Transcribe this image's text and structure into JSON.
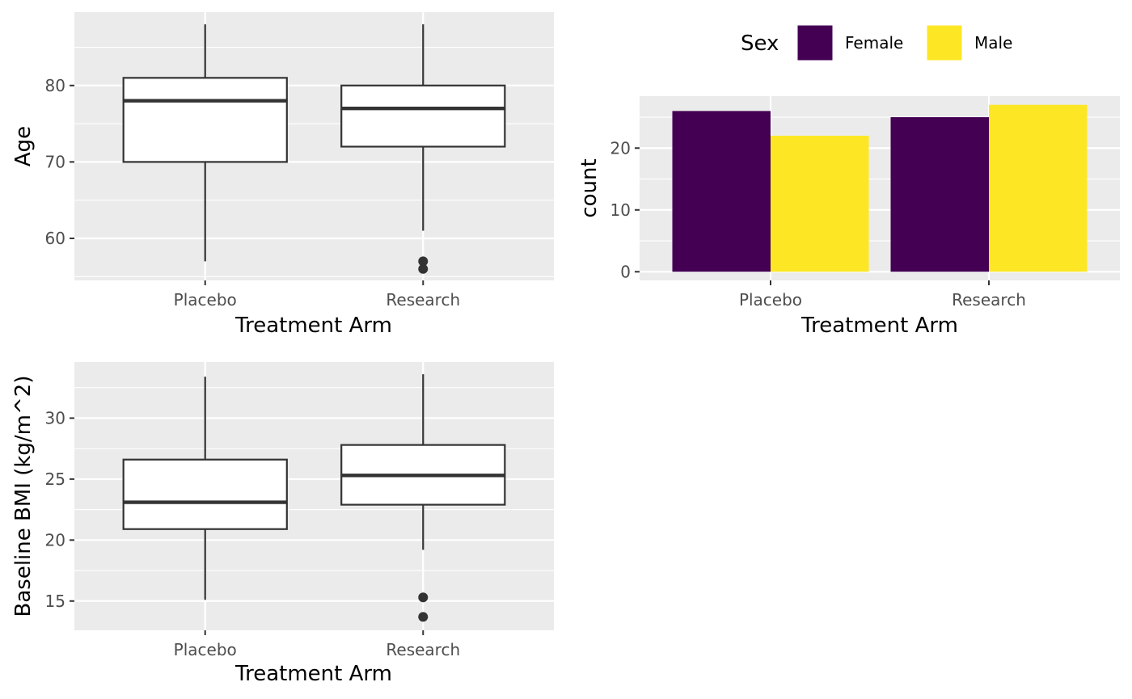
{
  "chart_data": [
    {
      "type": "boxplot",
      "xlabel": "Treatment Arm",
      "ylabel": "Age",
      "categories": [
        "Placebo",
        "Research"
      ],
      "y_ticks": [
        60,
        70,
        80
      ],
      "ylim": [
        54.5,
        89.6
      ],
      "boxes": [
        {
          "category": "Placebo",
          "min": 57,
          "q1": 70,
          "median": 78,
          "q3": 81,
          "max": 88,
          "outliers": []
        },
        {
          "category": "Research",
          "min": 61,
          "q1": 72,
          "median": 77,
          "q3": 80,
          "max": 88,
          "outliers": [
            57,
            56
          ]
        }
      ],
      "grid": true
    },
    {
      "type": "bar",
      "xlabel": "Treatment Arm",
      "ylabel": "count",
      "categories": [
        "Placebo",
        "Research"
      ],
      "y_ticks": [
        0,
        10,
        20
      ],
      "ylim": [
        -1.4,
        28.4
      ],
      "legend": {
        "title": "Sex",
        "position": "top"
      },
      "series": [
        {
          "name": "Female",
          "color": "#440154",
          "values": [
            26,
            25
          ]
        },
        {
          "name": "Male",
          "color": "#FDE725",
          "values": [
            22,
            27
          ]
        }
      ],
      "grid": true
    },
    {
      "type": "boxplot",
      "xlabel": "Treatment Arm",
      "ylabel": "Baseline BMI (kg/m^2)",
      "categories": [
        "Placebo",
        "Research"
      ],
      "y_ticks": [
        15,
        20,
        25,
        30
      ],
      "ylim": [
        12.6,
        34.6
      ],
      "boxes": [
        {
          "category": "Placebo",
          "min": 15.1,
          "q1": 20.9,
          "median": 23.1,
          "q3": 26.6,
          "max": 33.4,
          "outliers": []
        },
        {
          "category": "Research",
          "min": 19.2,
          "q1": 22.9,
          "median": 25.3,
          "q3": 27.8,
          "max": 33.6,
          "outliers": [
            15.3,
            13.7
          ]
        }
      ],
      "grid": true
    }
  ]
}
